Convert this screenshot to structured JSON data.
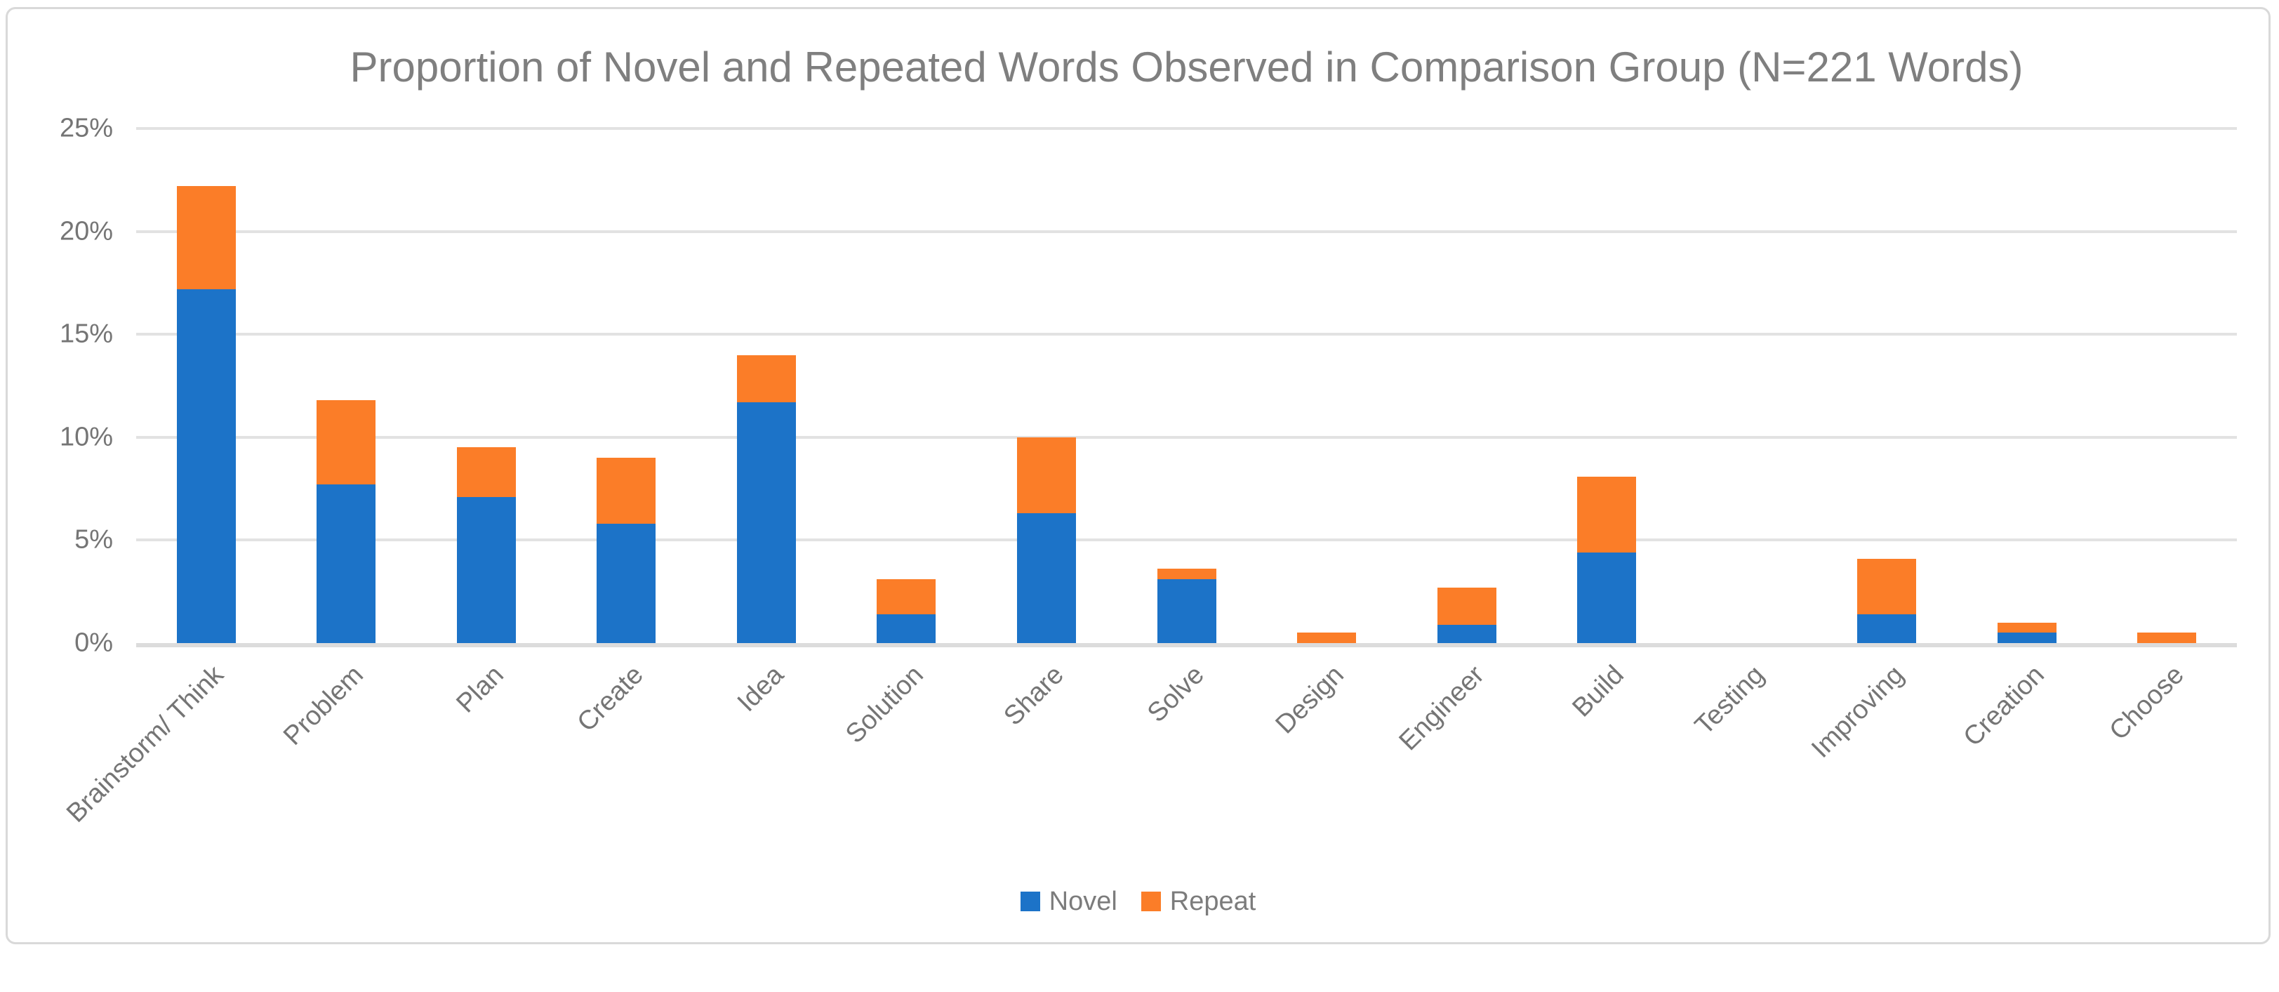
{
  "chart_data": {
    "type": "bar",
    "stacked": true,
    "title": "Proportion of Novel and Repeated Words Observed in Comparison Group (N=221 Words)",
    "categories": [
      "Brainstorm/ Think",
      "Problem",
      "Plan",
      "Create",
      "Idea",
      "Solution",
      "Share",
      "Solve",
      "Design",
      "Engineer",
      "Build",
      "Testing",
      "Improving",
      "Creation",
      "Choose"
    ],
    "series": [
      {
        "name": "Novel",
        "color": "#1C73C8",
        "values": [
          17.2,
          7.7,
          7.1,
          5.8,
          11.7,
          1.4,
          6.3,
          3.1,
          0,
          0.9,
          4.4,
          0,
          1.4,
          0.5,
          0
        ]
      },
      {
        "name": "Repeat",
        "color": "#FB7D28",
        "values": [
          5.0,
          4.1,
          2.4,
          3.2,
          2.3,
          1.7,
          3.7,
          0.5,
          0.5,
          1.8,
          3.7,
          0,
          2.7,
          0.5,
          0.5
        ]
      }
    ],
    "y_axis": {
      "min": 0,
      "max": 25,
      "step": 5,
      "tick_suffix": "%",
      "ticks": [
        {
          "label": "25%",
          "value": 25
        },
        {
          "label": "20%",
          "value": 20
        },
        {
          "label": "15%",
          "value": 15
        },
        {
          "label": "10%",
          "value": 10
        },
        {
          "label": "5%",
          "value": 5
        },
        {
          "label": "0%",
          "value": 0
        }
      ]
    },
    "x_axis": {
      "label_rotation_deg": 45
    },
    "legend": {
      "position": "bottom",
      "entries": [
        "Novel",
        "Repeat"
      ]
    },
    "grid": true,
    "style": {
      "bar_novel": "#1C73C8",
      "bar_repeat": "#FB7D28",
      "gridline": "#E2E2E2",
      "axis_line": "#DCDCDC",
      "title_text": "#7F7F7F",
      "tick_text": "#757575",
      "legend_text": "#7C7C7C",
      "frame_border": "#D9D9D9",
      "background": "#FFFFFF"
    }
  }
}
